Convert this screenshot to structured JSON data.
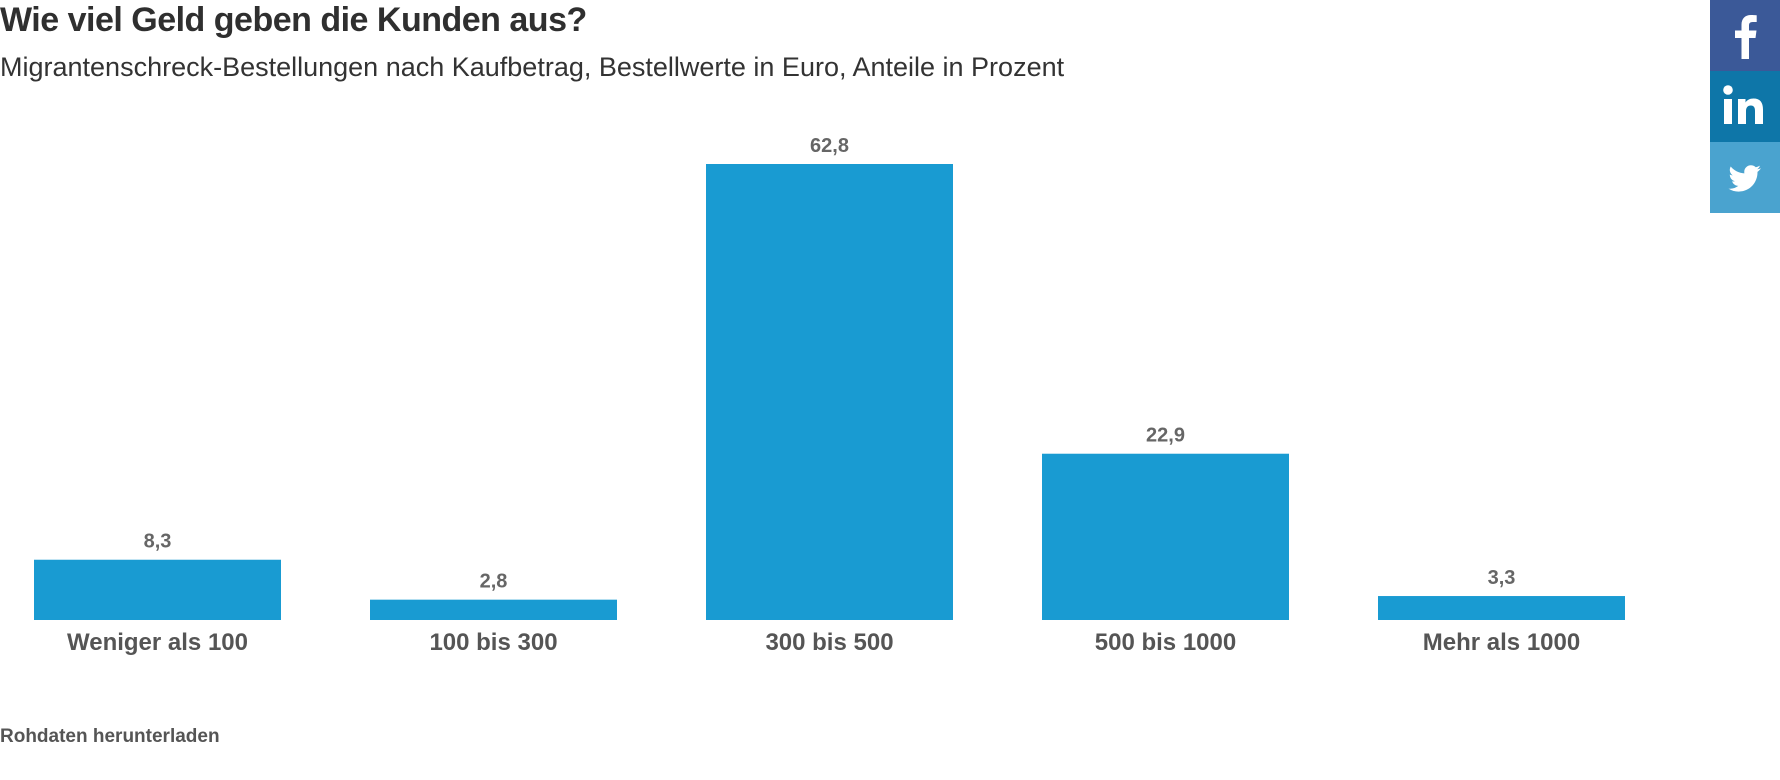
{
  "title": "Wie viel Geld geben die Kunden aus?",
  "subtitle": "Migrantenschreck-Bestellungen nach Kaufbetrag, Bestellwerte in Euro, Anteile in Prozent",
  "download_label": "Rohdaten herunterladen",
  "colors": {
    "bar": "#199bd2",
    "facebook": "#3b5998",
    "linkedin": "#0e76a8",
    "twitter": "#4aa3cf"
  },
  "social": [
    {
      "name": "facebook",
      "icon": "facebook-icon"
    },
    {
      "name": "linkedin",
      "icon": "linkedin-icon"
    },
    {
      "name": "twitter",
      "icon": "twitter-icon"
    }
  ],
  "chart_data": {
    "type": "bar",
    "title": "Wie viel Geld geben die Kunden aus?",
    "subtitle": "Migrantenschreck-Bestellungen nach Kaufbetrag, Bestellwerte in Euro, Anteile in Prozent",
    "xlabel": "",
    "ylabel": "",
    "categories": [
      "Weniger als 100",
      "100 bis 300",
      "300 bis 500",
      "500 bis 1000",
      "Mehr als 1000"
    ],
    "values": [
      8.3,
      2.8,
      62.8,
      22.9,
      3.3
    ],
    "value_labels": [
      "8,3",
      "2,8",
      "62,8",
      "22,9",
      "3,3"
    ],
    "ylim": [
      0,
      62.8
    ],
    "grid": false,
    "legend": "none"
  }
}
